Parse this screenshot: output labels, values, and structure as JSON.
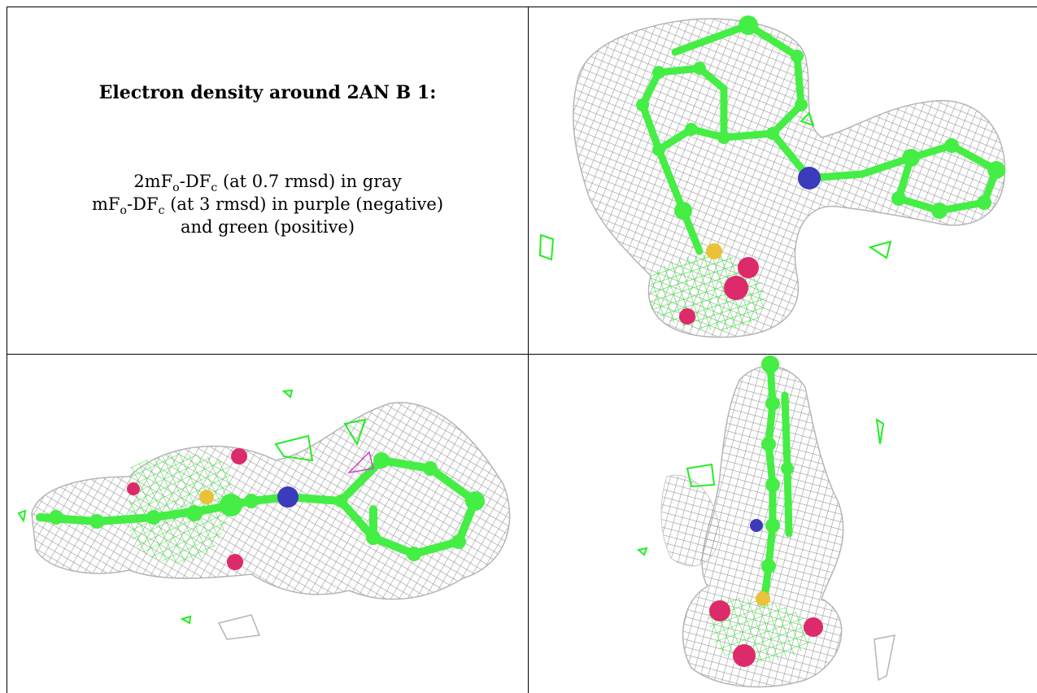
{
  "caption": {
    "title": "Electron density around 2AN B 1:",
    "line1": {
      "a": "2mF",
      "a_sub": "o",
      "b": "-DF",
      "b_sub": "c",
      "rest": " (at 0.7 rmsd) in gray"
    },
    "line2": {
      "a": "mF",
      "a_sub": "o",
      "b": "-DF",
      "b_sub": "c",
      "rest": " (at 3 rmsd) in purple (negative)"
    },
    "line3": "and green (positive)"
  },
  "colors": {
    "mesh_gray": "#9a9a9a",
    "difference_positive": "#22ee22",
    "difference_negative": "#cc44cc",
    "carbon": "#44ee44",
    "nitrogen": "#3b3bbb",
    "sulfur": "#e9c23a",
    "oxygen": "#dd2a6a"
  },
  "panels": [
    {
      "view": "top-right",
      "icon": "density-map-view-1"
    },
    {
      "view": "bottom-left",
      "icon": "density-map-view-2"
    },
    {
      "view": "bottom-right",
      "icon": "density-map-view-3"
    }
  ]
}
